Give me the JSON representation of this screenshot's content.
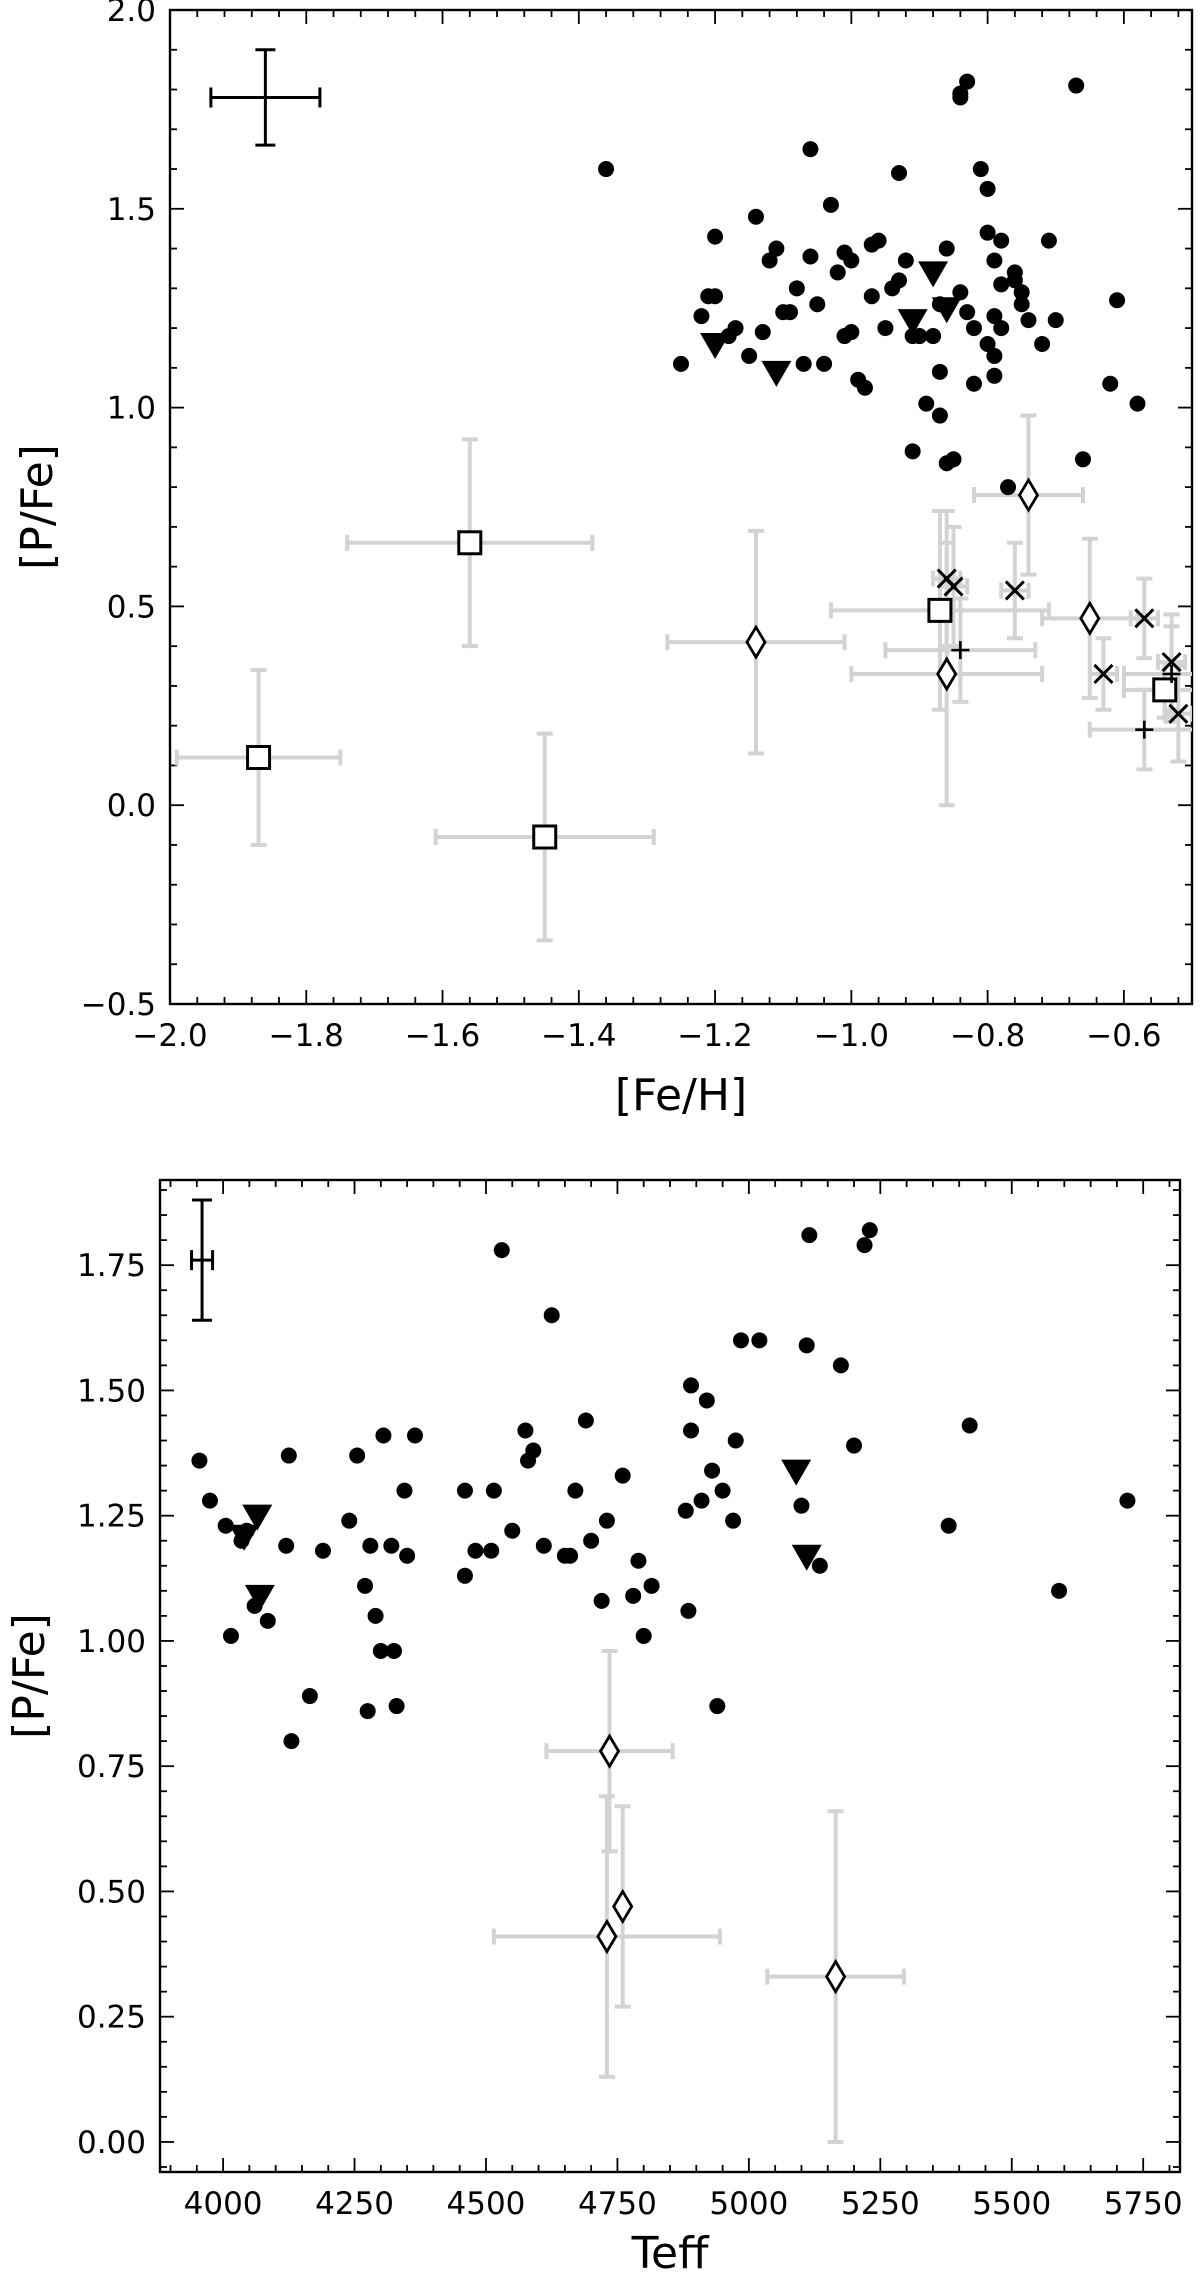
{
  "chart_data": [
    {
      "type": "scatter",
      "xlabel": "[Fe/H]",
      "ylabel": "[P/Fe]",
      "xlim": [
        -2.0,
        -0.5
      ],
      "ylim": [
        -0.5,
        2.0
      ],
      "xticks": [
        "−2.0",
        "−1.8",
        "−1.6",
        "−1.4",
        "−1.2",
        "−1.0",
        "−0.8",
        "−0.6"
      ],
      "xtick_values": [
        -2.0,
        -1.8,
        -1.6,
        -1.4,
        -1.2,
        -1.0,
        -0.8,
        -0.6
      ],
      "yticks": [
        "−0.5",
        "0.0",
        "0.5",
        "1.0",
        "1.5",
        "2.0"
      ],
      "ytick_values": [
        -0.5,
        0.0,
        0.5,
        1.0,
        1.5,
        2.0
      ],
      "typical_error": {
        "x": -1.86,
        "y": 1.78,
        "xerr": 0.08,
        "yerr": 0.12
      },
      "series": [
        {
          "marker": "filled-circle",
          "points": [
            [
              -1.36,
              1.6
            ],
            [
              -1.25,
              1.11
            ],
            [
              -1.22,
              1.23
            ],
            [
              -1.21,
              1.28
            ],
            [
              -1.2,
              1.43
            ],
            [
              -1.2,
              1.28
            ],
            [
              -1.18,
              1.18
            ],
            [
              -1.17,
              1.2
            ],
            [
              -1.15,
              1.13
            ],
            [
              -1.14,
              1.48
            ],
            [
              -1.13,
              1.19
            ],
            [
              -1.12,
              1.37
            ],
            [
              -1.11,
              1.4
            ],
            [
              -1.1,
              1.24
            ],
            [
              -1.09,
              1.24
            ],
            [
              -1.08,
              1.3
            ],
            [
              -1.07,
              1.11
            ],
            [
              -1.06,
              1.65
            ],
            [
              -1.06,
              1.38
            ],
            [
              -1.05,
              1.26
            ],
            [
              -1.04,
              1.11
            ],
            [
              -1.03,
              1.51
            ],
            [
              -1.02,
              1.34
            ],
            [
              -1.01,
              1.39
            ],
            [
              -1.01,
              1.18
            ],
            [
              -1.0,
              1.37
            ],
            [
              -1.0,
              1.19
            ],
            [
              -0.99,
              1.07
            ],
            [
              -0.98,
              1.05
            ],
            [
              -0.97,
              1.41
            ],
            [
              -0.97,
              1.28
            ],
            [
              -0.96,
              1.42
            ],
            [
              -0.95,
              1.2
            ],
            [
              -0.94,
              1.3
            ],
            [
              -0.93,
              1.32
            ],
            [
              -0.93,
              1.59
            ],
            [
              -0.92,
              1.37
            ],
            [
              -0.91,
              1.18
            ],
            [
              -0.91,
              0.89
            ],
            [
              -0.9,
              1.18
            ],
            [
              -0.89,
              1.01
            ],
            [
              -0.88,
              1.18
            ],
            [
              -0.87,
              0.98
            ],
            [
              -0.87,
              1.26
            ],
            [
              -0.87,
              1.09
            ],
            [
              -0.86,
              0.86
            ],
            [
              -0.86,
              1.4
            ],
            [
              -0.85,
              0.87
            ],
            [
              -0.84,
              1.29
            ],
            [
              -0.84,
              1.79
            ],
            [
              -0.84,
              1.78
            ],
            [
              -0.83,
              1.82
            ],
            [
              -0.83,
              1.24
            ],
            [
              -0.82,
              1.2
            ],
            [
              -0.82,
              1.06
            ],
            [
              -0.81,
              1.6
            ],
            [
              -0.8,
              1.55
            ],
            [
              -0.8,
              1.44
            ],
            [
              -0.8,
              1.16
            ],
            [
              -0.79,
              1.37
            ],
            [
              -0.79,
              1.23
            ],
            [
              -0.79,
              1.13
            ],
            [
              -0.79,
              1.08
            ],
            [
              -0.78,
              1.42
            ],
            [
              -0.78,
              1.31
            ],
            [
              -0.78,
              1.2
            ],
            [
              -0.77,
              0.8
            ],
            [
              -0.76,
              1.34
            ],
            [
              -0.76,
              1.32
            ],
            [
              -0.75,
              1.29
            ],
            [
              -0.75,
              1.26
            ],
            [
              -0.74,
              1.22
            ],
            [
              -0.72,
              1.16
            ],
            [
              -0.71,
              1.42
            ],
            [
              -0.7,
              1.22
            ],
            [
              -0.67,
              1.81
            ],
            [
              -0.66,
              0.87
            ],
            [
              -0.62,
              1.06
            ],
            [
              -0.61,
              1.27
            ],
            [
              -0.58,
              1.01
            ]
          ]
        },
        {
          "marker": "filled-triangle-down",
          "points": [
            [
              -1.2,
              1.16
            ],
            [
              -1.11,
              1.09
            ],
            [
              -0.91,
              1.22
            ],
            [
              -0.88,
              1.34
            ],
            [
              -0.86,
              1.25
            ]
          ]
        },
        {
          "marker": "open-square",
          "points": [
            [
              -1.87,
              0.12,
              0.12,
              0.22
            ],
            [
              -1.56,
              0.66,
              0.18,
              0.26
            ],
            [
              -1.45,
              -0.08,
              0.16,
              0.26
            ],
            [
              -0.87,
              0.49,
              0.16,
              0.25
            ],
            [
              -0.54,
              0.29,
              0.06,
              0.07
            ]
          ]
        },
        {
          "marker": "open-diamond",
          "points": [
            [
              -1.14,
              0.41,
              0.13,
              0.28
            ],
            [
              -0.86,
              0.33,
              0.14,
              0.33
            ],
            [
              -0.74,
              0.78,
              0.08,
              0.2
            ],
            [
              -0.65,
              0.47,
              0.07,
              0.2
            ]
          ]
        },
        {
          "marker": "x-cross",
          "points": [
            [
              -0.86,
              0.57,
              0.02,
              0.17
            ],
            [
              -0.85,
              0.55,
              0.02,
              0.15
            ],
            [
              -0.76,
              0.54,
              0.02,
              0.12
            ],
            [
              -0.63,
              0.33,
              0.02,
              0.09
            ],
            [
              -0.57,
              0.47,
              0.02,
              0.1
            ],
            [
              -0.53,
              0.36,
              0.02,
              0.12
            ],
            [
              -0.52,
              0.23,
              0.02,
              0.12
            ]
          ]
        },
        {
          "marker": "plus",
          "points": [
            [
              -0.84,
              0.39,
              0.11,
              0.13
            ],
            [
              -0.57,
              0.19,
              0.08,
              0.1
            ],
            [
              -0.53,
              0.33,
              0.07,
              0.12
            ]
          ]
        }
      ]
    },
    {
      "type": "scatter",
      "xlabel": "Teff",
      "ylabel": "[P/Fe]",
      "xlim": [
        3880,
        5820
      ],
      "ylim": [
        -0.06,
        1.92
      ],
      "xticks": [
        "4000",
        "4250",
        "4500",
        "4750",
        "5000",
        "5250",
        "5500",
        "5750"
      ],
      "xtick_values": [
        4000,
        4250,
        4500,
        4750,
        5000,
        5250,
        5500,
        5750
      ],
      "yticks": [
        "0.00",
        "0.25",
        "0.50",
        "0.75",
        "1.00",
        "1.25",
        "1.50",
        "1.75"
      ],
      "ytick_values": [
        0.0,
        0.25,
        0.5,
        0.75,
        1.0,
        1.25,
        1.5,
        1.75
      ],
      "typical_error": {
        "x": 3960,
        "y": 1.76,
        "xerr": 20,
        "yerr": 0.12
      },
      "series": [
        {
          "marker": "filled-circle",
          "points": [
            [
              3955,
              1.36
            ],
            [
              3975,
              1.28
            ],
            [
              4005,
              1.23
            ],
            [
              4015,
              1.01
            ],
            [
              4035,
              1.2
            ],
            [
              4045,
              1.22
            ],
            [
              4060,
              1.07
            ],
            [
              4085,
              1.04
            ],
            [
              4120,
              1.19
            ],
            [
              4125,
              1.37
            ],
            [
              4130,
              0.8
            ],
            [
              4165,
              0.89
            ],
            [
              4190,
              1.18
            ],
            [
              4240,
              1.24
            ],
            [
              4255,
              1.37
            ],
            [
              4270,
              1.11
            ],
            [
              4275,
              0.86
            ],
            [
              4280,
              1.19
            ],
            [
              4290,
              1.05
            ],
            [
              4300,
              0.98
            ],
            [
              4305,
              1.41
            ],
            [
              4320,
              1.19
            ],
            [
              4325,
              0.98
            ],
            [
              4330,
              0.87
            ],
            [
              4345,
              1.3
            ],
            [
              4350,
              1.17
            ],
            [
              4365,
              1.41
            ],
            [
              4460,
              1.13
            ],
            [
              4460,
              1.3
            ],
            [
              4480,
              1.18
            ],
            [
              4510,
              1.18
            ],
            [
              4515,
              1.3
            ],
            [
              4530,
              1.78
            ],
            [
              4550,
              1.22
            ],
            [
              4575,
              1.42
            ],
            [
              4580,
              1.36
            ],
            [
              4590,
              1.38
            ],
            [
              4610,
              1.19
            ],
            [
              4625,
              1.65
            ],
            [
              4650,
              1.17
            ],
            [
              4660,
              1.17
            ],
            [
              4670,
              1.3
            ],
            [
              4690,
              1.44
            ],
            [
              4700,
              1.2
            ],
            [
              4720,
              1.08
            ],
            [
              4730,
              1.24
            ],
            [
              4760,
              1.33
            ],
            [
              4780,
              1.09
            ],
            [
              4790,
              1.16
            ],
            [
              4800,
              1.01
            ],
            [
              4815,
              1.11
            ],
            [
              4880,
              1.26
            ],
            [
              4885,
              1.06
            ],
            [
              4890,
              1.51
            ],
            [
              4890,
              1.42
            ],
            [
              4910,
              1.28
            ],
            [
              4920,
              1.48
            ],
            [
              4930,
              1.34
            ],
            [
              4940,
              0.87
            ],
            [
              4950,
              1.3
            ],
            [
              4970,
              1.24
            ],
            [
              4975,
              1.4
            ],
            [
              4985,
              1.6
            ],
            [
              5020,
              1.6
            ],
            [
              5100,
              1.27
            ],
            [
              5110,
              1.59
            ],
            [
              5115,
              1.81
            ],
            [
              5135,
              1.15
            ],
            [
              5175,
              1.55
            ],
            [
              5200,
              1.39
            ],
            [
              5220,
              1.79
            ],
            [
              5230,
              1.82
            ],
            [
              5380,
              1.23
            ],
            [
              5420,
              1.43
            ],
            [
              5590,
              1.1
            ],
            [
              5720,
              1.28
            ]
          ]
        },
        {
          "marker": "filled-triangle-down",
          "points": [
            [
              4040,
              1.21
            ],
            [
              4065,
              1.25
            ],
            [
              4070,
              1.09
            ],
            [
              5090,
              1.34
            ],
            [
              5110,
              1.17
            ]
          ]
        },
        {
          "marker": "open-diamond",
          "points": [
            [
              4730,
              0.41,
              215,
              0.28
            ],
            [
              4735,
              0.78,
              120,
              0.2
            ],
            [
              4760,
              0.47,
              0,
              0.2
            ],
            [
              5165,
              0.33,
              130,
              0.33
            ]
          ]
        }
      ]
    }
  ]
}
